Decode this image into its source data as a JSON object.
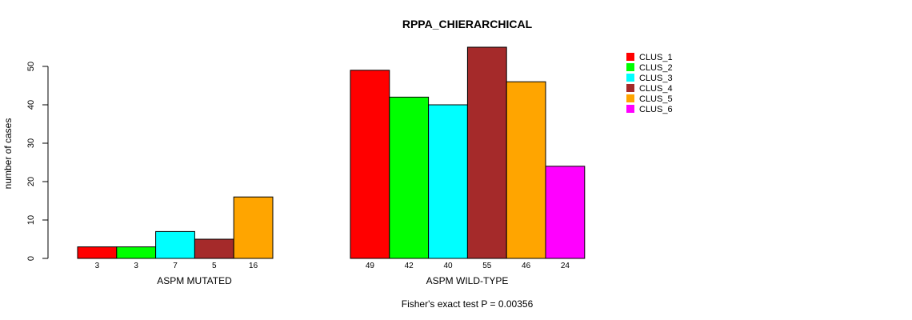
{
  "chart_data": {
    "type": "bar",
    "title": "RPPA_CHIERARCHICAL",
    "ylabel": "number of cases",
    "ylim": [
      0,
      50
    ],
    "yticks": [
      0,
      10,
      20,
      30,
      40,
      50
    ],
    "footnote": "Fisher's exact test P = 0.00356",
    "legend_position": "top-right",
    "series": [
      {
        "name": "CLUS_1",
        "color": "#ff0000"
      },
      {
        "name": "CLUS_2",
        "color": "#00ff00"
      },
      {
        "name": "CLUS_3",
        "color": "#00ffff"
      },
      {
        "name": "CLUS_4",
        "color": "#a52a2a"
      },
      {
        "name": "CLUS_5",
        "color": "#ffa500"
      },
      {
        "name": "CLUS_6",
        "color": "#ff00ff"
      }
    ],
    "groups": [
      {
        "label": "ASPM MUTATED",
        "values": [
          3,
          3,
          7,
          5,
          16,
          0
        ],
        "count_labels": [
          "3",
          "3",
          "7",
          "5",
          "16",
          ""
        ]
      },
      {
        "label": "ASPM WILD-TYPE",
        "values": [
          49,
          42,
          40,
          55,
          46,
          24
        ],
        "count_labels": [
          "49",
          "42",
          "40",
          "55",
          "46",
          "24"
        ]
      }
    ]
  }
}
